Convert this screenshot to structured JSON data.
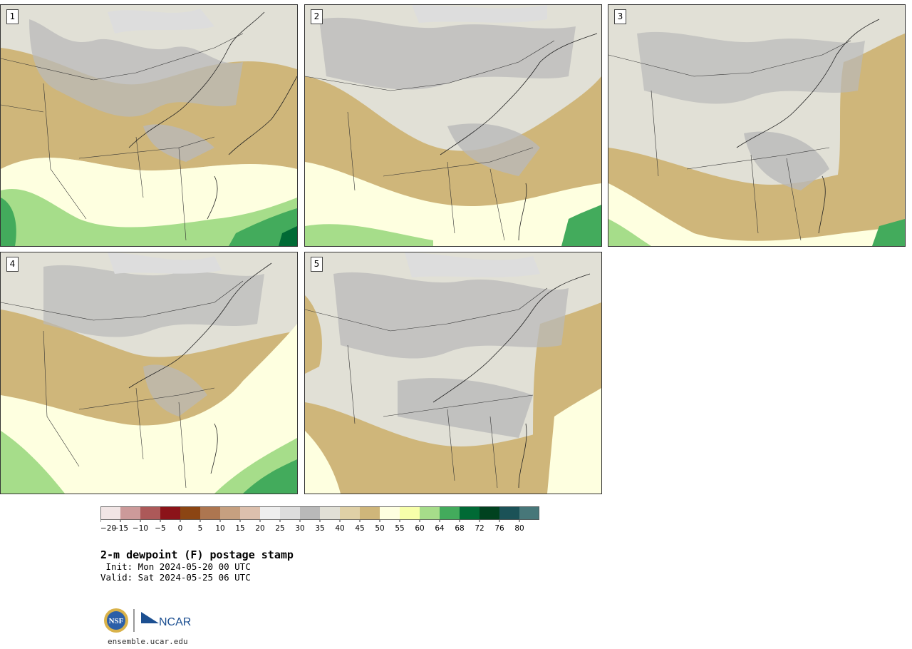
{
  "panels": [
    {
      "label": "1"
    },
    {
      "label": "2"
    },
    {
      "label": "3"
    },
    {
      "label": "4"
    },
    {
      "label": "5"
    }
  ],
  "colorbar": {
    "tick_labels": [
      "−20",
      "−15",
      "−10",
      "−5",
      "0",
      "5",
      "10",
      "15",
      "20",
      "25",
      "30",
      "35",
      "40",
      "45",
      "50",
      "55",
      "60",
      "64",
      "68",
      "72",
      "76",
      "80"
    ],
    "colors": [
      "#f1e5e5",
      "#cc9a9a",
      "#ac5959",
      "#8b1319",
      "#8b4513",
      "#ad7650",
      "#c6a080",
      "#dcc0ad",
      "#eeeeee",
      "#dddddd",
      "#b9b9b9",
      "#e1e0d6",
      "#dfd0a6",
      "#cfb67a",
      "#feffe0",
      "#f7ffaa",
      "#a6dd8a",
      "#43ab5c",
      "#006a35",
      "#00421f",
      "#1b5257",
      "#477779"
    ]
  },
  "title": "2-m dewpoint (F) postage stamp",
  "init_line": " Init: Mon 2024-05-20 00 UTC",
  "valid_line": "Valid: Sat 2024-05-25 06 UTC",
  "logos": {
    "nsf": "NSF",
    "ncar": "NCAR"
  },
  "url": "ensemble.ucar.edu"
}
